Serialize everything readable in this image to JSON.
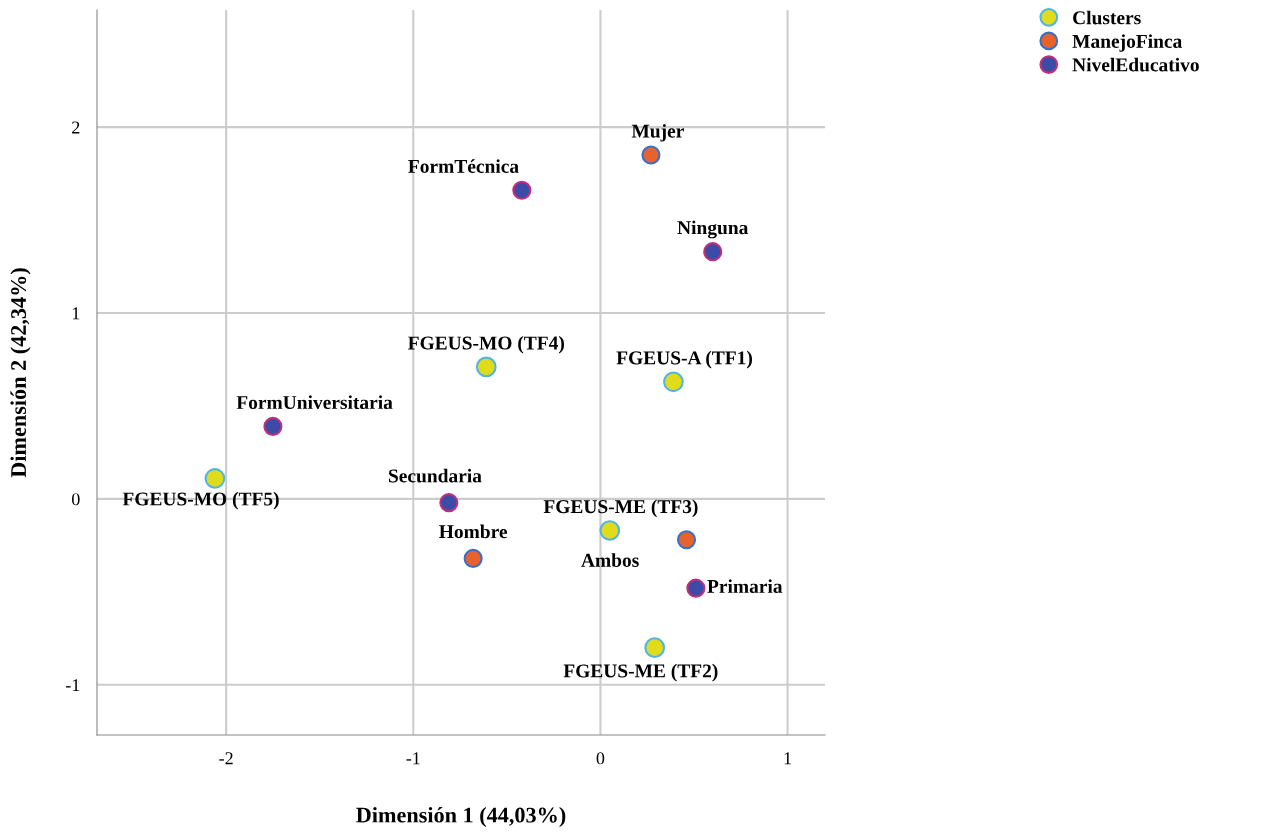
{
  "chart_data": {
    "type": "scatter",
    "xlabel": "Dimensión 1 (44,03%)",
    "ylabel": "Dimensión 2 (42,34%)",
    "xlim": [
      -2.69,
      1.2
    ],
    "ylim": [
      -1.27,
      2.63
    ],
    "xticks": [
      -2,
      -1,
      0,
      1
    ],
    "yticks": [
      -1,
      0,
      1,
      2
    ],
    "grid": true,
    "legend": "top right",
    "marker": "circle",
    "series": [
      {
        "name": "Clusters",
        "color": "#e0dc1c",
        "x": [
          -0.61,
          0.39,
          -2.06,
          0.05,
          0.29
        ],
        "values": [
          0.71,
          0.63,
          0.11,
          -0.17,
          -0.8
        ]
      },
      {
        "name": "ManejoFinca",
        "color": "#e8632b",
        "x": [
          0.27,
          -0.68,
          0.46
        ],
        "values": [
          1.85,
          -0.32,
          -0.22
        ]
      },
      {
        "name": "NivelEducativo",
        "color": "#3c4aa8",
        "x": [
          -0.42,
          0.6,
          -1.75,
          -0.81,
          0.51
        ],
        "values": [
          1.66,
          1.33,
          0.39,
          -0.02,
          -0.48
        ]
      }
    ],
    "annotations": [
      {
        "text": "FGEUS-MO (TF4)",
        "x": -0.61,
        "y": 0.71
      },
      {
        "text": "FGEUS-A (TF1)",
        "x": 0.39,
        "y": 0.63
      },
      {
        "text": "FGEUS-MO (TF5)",
        "x": -2.06,
        "y": 0.11
      },
      {
        "text": "FGEUS-ME (TF3)",
        "x": 0.05,
        "y": -0.17
      },
      {
        "text": "FGEUS-ME (TF2)",
        "x": 0.29,
        "y": -0.8
      },
      {
        "text": "Mujer",
        "x": 0.27,
        "y": 1.85
      },
      {
        "text": "Hombre",
        "x": -0.68,
        "y": -0.32
      },
      {
        "text": "Ambos",
        "x": 0.46,
        "y": -0.22
      },
      {
        "text": "FormTécnica",
        "x": -0.42,
        "y": 1.66
      },
      {
        "text": "Ninguna",
        "x": 0.6,
        "y": 1.33
      },
      {
        "text": "FormUniversitaria",
        "x": -1.75,
        "y": 0.39
      },
      {
        "text": "Secundaria",
        "x": -0.81,
        "y": -0.02
      },
      {
        "text": "Primaria",
        "x": 0.51,
        "y": -0.48
      }
    ]
  }
}
